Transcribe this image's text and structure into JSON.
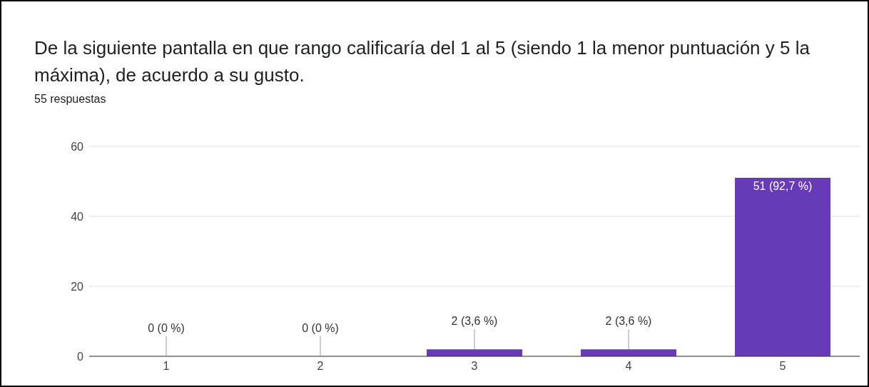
{
  "chart_data": {
    "type": "bar",
    "title": "De la siguiente pantalla en que rango calificaría del 1 al 5 (siendo 1 la menor puntuación y 5 la máxima), de acuerdo a su gusto.",
    "subtitle": "55 respuestas",
    "categories": [
      "1",
      "2",
      "3",
      "4",
      "5"
    ],
    "values": [
      0,
      0,
      2,
      2,
      51
    ],
    "value_labels": [
      "0 (0 %)",
      "0 (0 %)",
      "2 (3,6 %)",
      "2 (3,6 %)",
      "51 (92,7 %)"
    ],
    "color": "#673ab7",
    "ylim": [
      0,
      60
    ],
    "yticks": [
      0,
      20,
      40,
      60
    ],
    "grid": "y"
  }
}
